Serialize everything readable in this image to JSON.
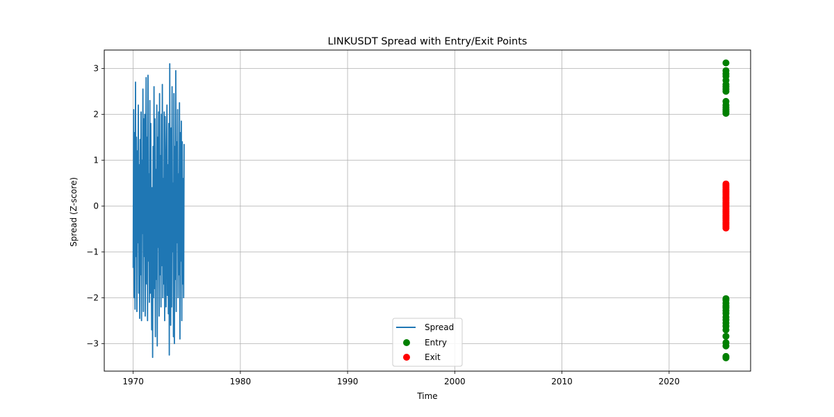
{
  "chart_data": {
    "type": "line",
    "title": "LINKUSDT Spread with Entry/Exit Points",
    "xlabel": "Time",
    "ylabel": "Spread (Z-score)",
    "xlim": [
      1967.3,
      2027.6
    ],
    "ylim": [
      -3.6,
      3.4
    ],
    "xticks": [
      1970,
      1980,
      1990,
      2000,
      2010,
      2020
    ],
    "yticks": [
      -3,
      -2,
      -1,
      0,
      1,
      2,
      3
    ],
    "grid": true,
    "legend_position": "lower-center",
    "colors": {
      "spread": "#1f77b4",
      "entry": "#008000",
      "exit": "#ff0000",
      "grid": "#b0b0b0"
    },
    "series": [
      {
        "name": "Spread",
        "kind": "line",
        "x_start": 1970.0,
        "x_end": 1974.75,
        "y": [
          -1.35,
          2.1,
          -2.0,
          1.6,
          -2.25,
          2.7,
          -1.1,
          1.5,
          -2.3,
          1.2,
          -0.8,
          2.2,
          -1.9,
          0.9,
          -2.45,
          1.45,
          -1.5,
          2.05,
          -2.5,
          1.0,
          -0.6,
          2.55,
          -2.3,
          1.9,
          -1.1,
          2.0,
          -2.4,
          0.5,
          2.8,
          -1.7,
          1.5,
          -2.5,
          2.85,
          -1.2,
          0.7,
          -2.1,
          2.3,
          -1.9,
          1.8,
          -1.0,
          -2.7,
          0.4,
          -3.3,
          1.3,
          -2.0,
          2.6,
          -1.8,
          1.9,
          -2.85,
          0.8,
          -1.6,
          2.2,
          -3.05,
          1.5,
          -0.9,
          2.05,
          -2.4,
          2.45,
          -1.5,
          1.1,
          -2.2,
          2.0,
          -1.3,
          2.65,
          -2.0,
          0.6,
          -1.7,
          2.05,
          -2.5,
          1.95,
          -0.4,
          -2.2,
          1.2,
          2.2,
          -1.95,
          0.9,
          -2.35,
          1.8,
          -3.25,
          3.1,
          -1.2,
          -2.6,
          1.7,
          -2.2,
          2.6,
          -1.0,
          0.5,
          -2.85,
          2.45,
          -3.0,
          1.3,
          -1.6,
          2.95,
          -2.3,
          1.4,
          -0.8,
          2.1,
          -2.0,
          0.7,
          -1.5,
          2.25,
          -2.9,
          1.6,
          -1.2,
          1.85,
          -2.5,
          1.4,
          -1.7,
          0.6,
          -2.0,
          1.35
        ]
      },
      {
        "name": "Entry",
        "kind": "scatter",
        "x": 2025.3,
        "y": [
          3.12,
          2.95,
          2.88,
          2.83,
          2.74,
          2.65,
          2.6,
          2.55,
          2.5,
          2.28,
          2.2,
          2.15,
          2.1,
          2.06,
          2.02,
          -2.02,
          -2.05,
          -2.12,
          -2.18,
          -2.22,
          -2.28,
          -2.34,
          -2.42,
          -2.48,
          -2.55,
          -2.62,
          -2.7,
          -2.84,
          -2.98,
          -3.05,
          -3.28,
          -3.31
        ]
      },
      {
        "name": "Exit",
        "kind": "scatter",
        "x": 2025.3,
        "y": [
          0.48,
          0.44,
          0.4,
          0.36,
          0.32,
          0.28,
          0.24,
          0.2,
          0.16,
          0.12,
          0.08,
          0.04,
          0.0,
          -0.04,
          -0.08,
          -0.12,
          -0.16,
          -0.2,
          -0.24,
          -0.28,
          -0.32,
          -0.36,
          -0.4,
          -0.44,
          -0.48
        ]
      }
    ]
  }
}
